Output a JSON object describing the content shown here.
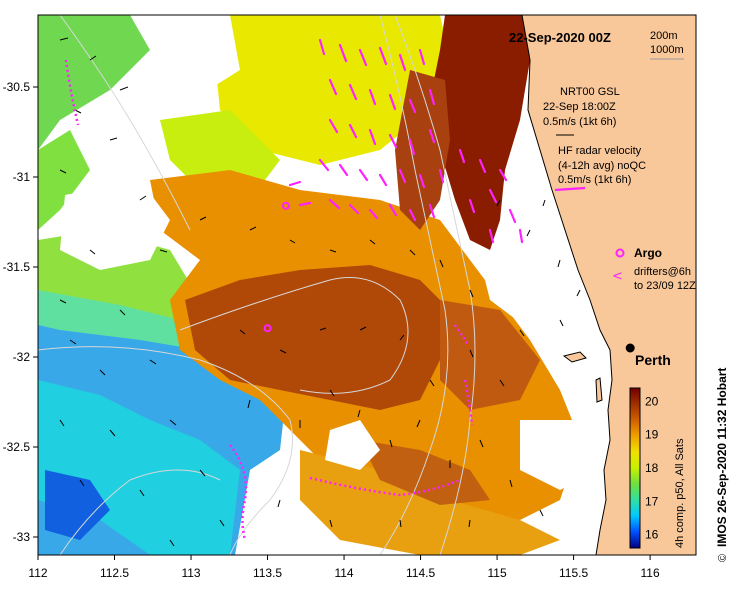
{
  "map": {
    "title": "22-Sep-2020 00Z",
    "bathymetry_legend": [
      "200m",
      "1000m"
    ],
    "city": "Perth",
    "credit": "IMOS 26-Sep-2020 11:32 Hobart",
    "copyright_symbol": "©",
    "colors": {
      "land": "#f8c79a",
      "hf_vectors": "#ff22ff",
      "wind_vectors": "#000000",
      "isobaths": "#d7d7d7"
    }
  },
  "legend": {
    "model_line1": "NRT00 GSL",
    "model_line2": "22-Sep 18:00Z",
    "model_line3": "0.5m/s (1kt 6h)",
    "hf_line1": "HF radar velocity",
    "hf_line2": "(4-12h avg) noQC",
    "hf_line3": "0.5m/s (1kt 6h)",
    "argo": "Argo",
    "drifters_line1": "drifters@6h",
    "drifters_line2": "to 23/09 12Z"
  },
  "axes": {
    "x_ticks": [
      "112",
      "112.5",
      "113",
      "113.5",
      "114",
      "114.5",
      "115",
      "115.5",
      "116"
    ],
    "y_ticks": [
      "-30.5",
      "-31",
      "-31.5",
      "-32",
      "-32.5",
      "-33"
    ],
    "lon_range": [
      112,
      116.3
    ],
    "lat_range": [
      -30.1,
      -33.1
    ]
  },
  "colorbar": {
    "label": "4h comp. p50, All Sats",
    "ticks": [
      "20",
      "19",
      "18",
      "17",
      "16"
    ],
    "range": [
      15.6,
      20.4
    ],
    "colors": [
      "#000080",
      "#0050ff",
      "#00c8ff",
      "#30e0a0",
      "#70e040",
      "#c8f000",
      "#f0e000",
      "#f0a000",
      "#d06000",
      "#a03000",
      "#700000"
    ]
  },
  "stations": {
    "argo_floats": [
      [
        113.62,
        -31.16
      ],
      [
        113.5,
        -31.84
      ]
    ],
    "perth": [
      115.87,
      -31.95
    ]
  }
}
